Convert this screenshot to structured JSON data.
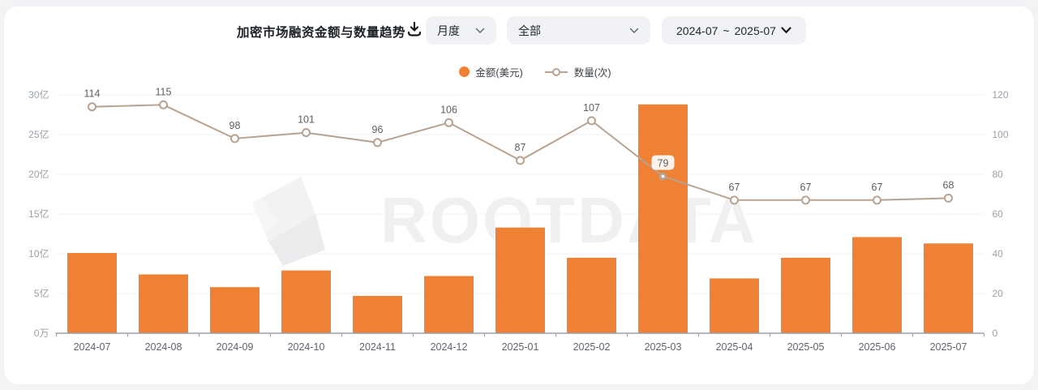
{
  "header": {
    "title": "加密市场融资金额与数量趋势",
    "granularity_select": {
      "value": "月度"
    },
    "category_select": {
      "value": "全部"
    },
    "date_range": {
      "start": "2024-07",
      "separator": "~",
      "end": "2025-07"
    }
  },
  "legend": {
    "amount_label": "金额(美元)",
    "count_label": "数量(次)"
  },
  "watermark": "ROOTDATA",
  "colors": {
    "bar": "#ee8133",
    "line": "#b7a392",
    "data_label": "#5c6166",
    "axis_label": "#9aa1aa",
    "x_label": "#5f646b",
    "grid_line": "#f0f1f4",
    "axis_line": "#98a1ac"
  },
  "chart_data": {
    "type": "bar",
    "note": "combo bar+line, bar on left axis (亿 USD), line on right axis (count)",
    "categories": [
      "2024-07",
      "2024-08",
      "2024-09",
      "2024-10",
      "2024-11",
      "2024-12",
      "2025-01",
      "2025-02",
      "2025-03",
      "2025-04",
      "2025-05",
      "2025-06",
      "2025-07"
    ],
    "series": [
      {
        "name": "金额(美元)",
        "type": "bar",
        "axis": "left",
        "unit": "亿美元",
        "values": [
          10.1,
          7.4,
          5.8,
          7.9,
          4.7,
          7.2,
          13.3,
          9.5,
          28.8,
          6.9,
          9.5,
          12.1,
          11.3
        ],
        "color": "#ee8133"
      },
      {
        "name": "数量(次)",
        "type": "line",
        "axis": "right",
        "unit": "次",
        "values": [
          114,
          115,
          98,
          101,
          96,
          106,
          87,
          107,
          79,
          67,
          67,
          67,
          68
        ],
        "show_labels": true,
        "highlight_index": 8,
        "color": "#b7a392"
      }
    ],
    "left_axis": {
      "ticks": [
        "0万",
        "5亿",
        "10亿",
        "15亿",
        "20亿",
        "25亿",
        "30亿"
      ],
      "min": 0,
      "max": 30
    },
    "right_axis": {
      "ticks": [
        "0",
        "20",
        "40",
        "60",
        "80",
        "100",
        "120"
      ],
      "min": 0,
      "max": 120
    },
    "grid": true,
    "legend_position": "top-center",
    "title": "加密市场融资金额与数量趋势"
  }
}
